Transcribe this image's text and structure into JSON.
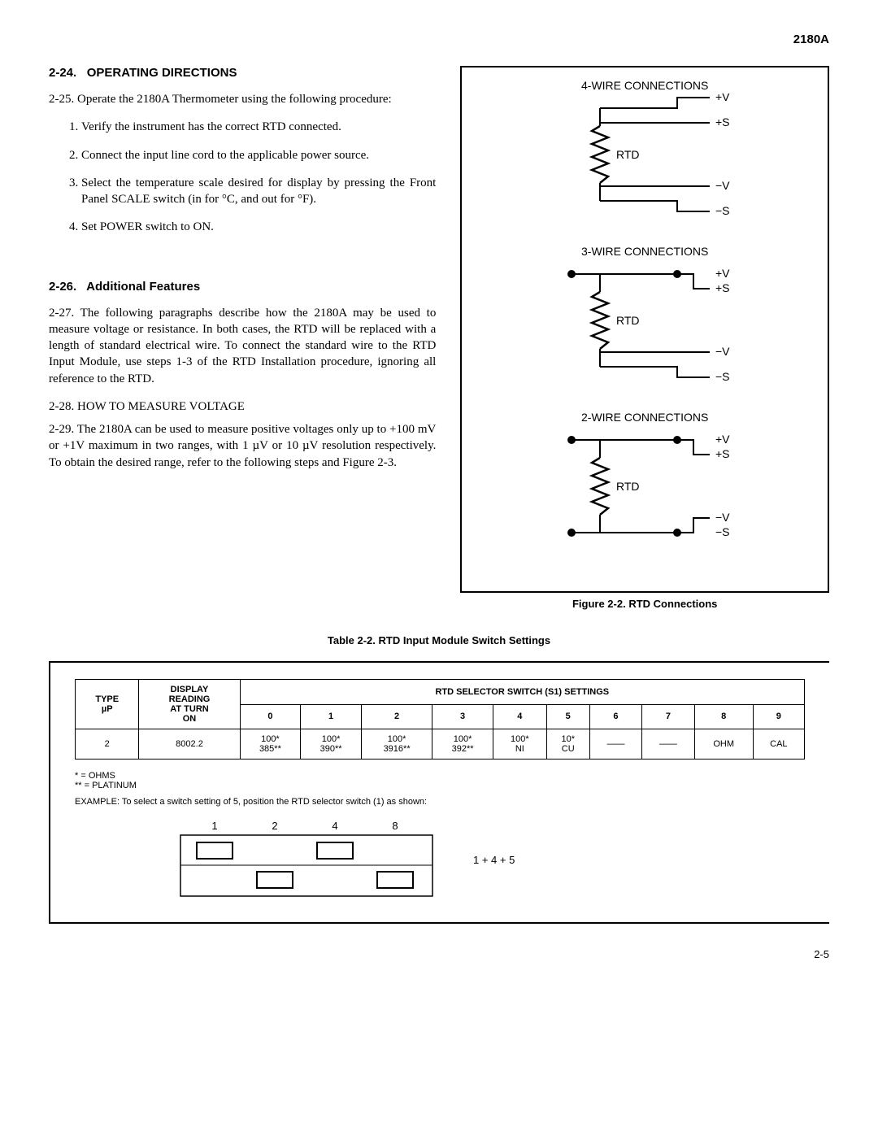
{
  "header": {
    "model": "2180A"
  },
  "section_224": {
    "num": "2-24.",
    "title": "OPERATING DIRECTIONS",
    "para_225": "2-25.   Operate the 2180A Thermometer using the following procedure:",
    "steps": [
      "Verify the instrument has the correct RTD connected.",
      "Connect the input line cord to the applicable power source.",
      "Select the temperature scale desired for display by pressing the Front Panel SCALE switch (in for °C, and out for °F).",
      "Set POWER switch to ON."
    ]
  },
  "section_226": {
    "num": "2-26.",
    "title": "Additional Features",
    "para_227": "2-27.   The following paragraphs describe how the 2180A may be used to measure voltage or resistance. In both cases, the RTD will be replaced with a length of standard electrical wire. To connect the standard wire to the RTD Input Module, use steps 1-3 of the RTD Installation procedure, ignoring all reference to the RTD.",
    "sub_228": "2-28.   HOW TO MEASURE VOLTAGE",
    "para_229": "2-29.   The 2180A can be used to measure positive voltages only up to +100 mV or +1V maximum in two ranges, with 1 µV or 10 µV resolution respectively. To obtain the desired range, refer to the following steps and Figure 2-3."
  },
  "figure": {
    "caption": "Figure 2-2. RTD Connections",
    "blocks": [
      {
        "title": "4-WIRE CONNECTIONS",
        "labels": {
          "pv": "+V",
          "ps": "+S",
          "rtd": "RTD",
          "nv": "−V",
          "ns": "−S"
        },
        "top_dots": false,
        "bot_dots": false
      },
      {
        "title": "3-WIRE CONNECTIONS",
        "labels": {
          "pv": "+V",
          "ps": "+S",
          "rtd": "RTD",
          "nv": "−V",
          "ns": "−S"
        },
        "top_dots": true,
        "bot_dots": false
      },
      {
        "title": "2-WIRE CONNECTIONS",
        "labels": {
          "pv": "+V",
          "ps": "+S",
          "rtd": "RTD",
          "nv": "−V",
          "ns": "−S"
        },
        "top_dots": true,
        "bot_dots": true
      }
    ]
  },
  "table": {
    "caption": "Table 2-2. RTD Input Module Switch Settings",
    "col1_header_l1": "TYPE",
    "col1_header_l2": "µP",
    "col2_header_l1": "DISPLAY",
    "col2_header_l2": "READING",
    "col2_header_l3": "AT TURN",
    "col2_header_l4": "ON",
    "span_header": "RTD SELECTOR SWITCH (S1) SETTINGS",
    "setting_nums": [
      "0",
      "1",
      "2",
      "3",
      "4",
      "5",
      "6",
      "7",
      "8",
      "9"
    ],
    "row": {
      "type": "2",
      "reading": "8002.2",
      "cells": [
        {
          "l1": "100*",
          "l2": "385**"
        },
        {
          "l1": "100*",
          "l2": "390**"
        },
        {
          "l1": "100*",
          "l2": "3916**"
        },
        {
          "l1": "100*",
          "l2": "392**"
        },
        {
          "l1": "100*",
          "l2": "NI"
        },
        {
          "l1": "10*",
          "l2": "CU"
        },
        {
          "l1": "——",
          "l2": ""
        },
        {
          "l1": "——",
          "l2": ""
        },
        {
          "l1": "OHM",
          "l2": ""
        },
        {
          "l1": "CAL",
          "l2": ""
        }
      ]
    },
    "footnote1": "*   =  OHMS",
    "footnote2": "** =  PLATINUM",
    "example": "EXAMPLE:  To select a switch setting of 5, position the RTD selector switch (1) as shown:",
    "dip_labels": [
      "1",
      "2",
      "4",
      "8"
    ],
    "dip_positions": [
      "up",
      "down",
      "up",
      "down"
    ],
    "dip_sum": "1 + 4 + 5"
  },
  "page_number": "2-5"
}
